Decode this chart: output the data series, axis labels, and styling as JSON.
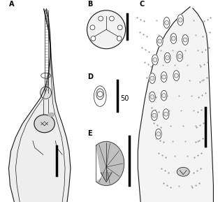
{
  "bg_color": "#ffffff",
  "dark_line": "#1a1a1a",
  "label_A": "A",
  "label_B": "B",
  "label_C": "C",
  "label_D": "D",
  "label_E": "E",
  "scale_text": "50",
  "font_size_label": 7,
  "font_size_scale": 7
}
